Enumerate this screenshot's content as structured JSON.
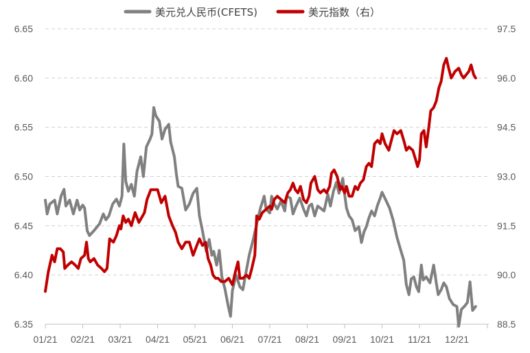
{
  "chart_data": {
    "type": "line",
    "title": "",
    "legend_position": "top",
    "grid": "horizontal-dashed",
    "x_labels": [
      "01/21",
      "02/21",
      "03/21",
      "04/21",
      "05/21",
      "06/21",
      "07/21",
      "08/21",
      "09/21",
      "10/21",
      "11/21",
      "12/21"
    ],
    "x_unit": "month index (0 = 2021-01-01)",
    "xlim": [
      0,
      11.6
    ],
    "y_left": {
      "ticks": [
        "6.65",
        "6.60",
        "6.55",
        "6.50",
        "6.45",
        "6.40",
        "6.35"
      ],
      "lim": [
        6.35,
        6.65
      ]
    },
    "y_right": {
      "ticks": [
        "97.5",
        "96.0",
        "94.5",
        "93.0",
        "91.5",
        "90.0",
        "88.5"
      ],
      "lim": [
        88.5,
        97.5
      ]
    },
    "series": [
      {
        "name": "美元兑人民币(CFETS)",
        "axis": "left",
        "color": "#808080",
        "points": [
          [
            0.0,
            6.476
          ],
          [
            0.05,
            6.462
          ],
          [
            0.12,
            6.472
          ],
          [
            0.25,
            6.476
          ],
          [
            0.32,
            6.462
          ],
          [
            0.42,
            6.48
          ],
          [
            0.5,
            6.487
          ],
          [
            0.55,
            6.47
          ],
          [
            0.65,
            6.476
          ],
          [
            0.75,
            6.462
          ],
          [
            0.85,
            6.476
          ],
          [
            0.92,
            6.466
          ],
          [
            1.0,
            6.471
          ],
          [
            1.05,
            6.468
          ],
          [
            1.12,
            6.445
          ],
          [
            1.18,
            6.44
          ],
          [
            1.3,
            6.445
          ],
          [
            1.45,
            6.452
          ],
          [
            1.55,
            6.462
          ],
          [
            1.62,
            6.456
          ],
          [
            1.7,
            6.46
          ],
          [
            1.8,
            6.472
          ],
          [
            1.9,
            6.477
          ],
          [
            1.98,
            6.47
          ],
          [
            2.05,
            6.48
          ],
          [
            2.1,
            6.533
          ],
          [
            2.15,
            6.495
          ],
          [
            2.22,
            6.485
          ],
          [
            2.3,
            6.492
          ],
          [
            2.38,
            6.48
          ],
          [
            2.45,
            6.505
          ],
          [
            2.55,
            6.52
          ],
          [
            2.62,
            6.5
          ],
          [
            2.7,
            6.53
          ],
          [
            2.8,
            6.538
          ],
          [
            2.85,
            6.543
          ],
          [
            2.9,
            6.57
          ],
          [
            2.95,
            6.562
          ],
          [
            3.05,
            6.556
          ],
          [
            3.12,
            6.538
          ],
          [
            3.2,
            6.548
          ],
          [
            3.3,
            6.553
          ],
          [
            3.35,
            6.535
          ],
          [
            3.45,
            6.52
          ],
          [
            3.5,
            6.503
          ],
          [
            3.55,
            6.49
          ],
          [
            3.65,
            6.488
          ],
          [
            3.75,
            6.466
          ],
          [
            3.85,
            6.472
          ],
          [
            3.95,
            6.483
          ],
          [
            4.05,
            6.488
          ],
          [
            4.12,
            6.46
          ],
          [
            4.2,
            6.445
          ],
          [
            4.3,
            6.424
          ],
          [
            4.38,
            6.436
          ],
          [
            4.45,
            6.42
          ],
          [
            4.5,
            6.424
          ],
          [
            4.58,
            6.41
          ],
          [
            4.65,
            6.425
          ],
          [
            4.72,
            6.398
          ],
          [
            4.8,
            6.386
          ],
          [
            4.88,
            6.37
          ],
          [
            4.95,
            6.358
          ],
          [
            5.0,
            6.384
          ],
          [
            5.1,
            6.4
          ],
          [
            5.2,
            6.388
          ],
          [
            5.28,
            6.385
          ],
          [
            5.35,
            6.4
          ],
          [
            5.45,
            6.42
          ],
          [
            5.55,
            6.435
          ],
          [
            5.65,
            6.452
          ],
          [
            5.75,
            6.468
          ],
          [
            5.85,
            6.48
          ],
          [
            5.9,
            6.467
          ],
          [
            6.0,
            6.463
          ],
          [
            6.05,
            6.48
          ],
          [
            6.12,
            6.472
          ],
          [
            6.2,
            6.467
          ],
          [
            6.3,
            6.475
          ],
          [
            6.4,
            6.465
          ],
          [
            6.45,
            6.48
          ],
          [
            6.55,
            6.478
          ],
          [
            6.62,
            6.462
          ],
          [
            6.7,
            6.47
          ],
          [
            6.8,
            6.478
          ],
          [
            6.9,
            6.467
          ],
          [
            6.98,
            6.46
          ],
          [
            7.05,
            6.47
          ],
          [
            7.12,
            6.472
          ],
          [
            7.2,
            6.46
          ],
          [
            7.28,
            6.47
          ],
          [
            7.35,
            6.468
          ],
          [
            7.45,
            6.465
          ],
          [
            7.55,
            6.482
          ],
          [
            7.62,
            6.47
          ],
          [
            7.7,
            6.485
          ],
          [
            7.78,
            6.494
          ],
          [
            7.85,
            6.483
          ],
          [
            7.95,
            6.498
          ],
          [
            8.0,
            6.482
          ],
          [
            8.05,
            6.468
          ],
          [
            8.12,
            6.46
          ],
          [
            8.2,
            6.456
          ],
          [
            8.28,
            6.445
          ],
          [
            8.38,
            6.449
          ],
          [
            8.45,
            6.433
          ],
          [
            8.52,
            6.444
          ],
          [
            8.58,
            6.449
          ],
          [
            8.65,
            6.458
          ],
          [
            8.72,
            6.465
          ],
          [
            8.8,
            6.46
          ],
          [
            8.88,
            6.471
          ],
          [
            8.95,
            6.478
          ],
          [
            9.0,
            6.484
          ],
          [
            9.1,
            6.476
          ],
          [
            9.2,
            6.468
          ],
          [
            9.3,
            6.455
          ],
          [
            9.4,
            6.438
          ],
          [
            9.5,
            6.425
          ],
          [
            9.58,
            6.415
          ],
          [
            9.65,
            6.39
          ],
          [
            9.72,
            6.38
          ],
          [
            9.78,
            6.396
          ],
          [
            9.85,
            6.398
          ],
          [
            9.92,
            6.388
          ],
          [
            9.98,
            6.383
          ],
          [
            10.05,
            6.41
          ],
          [
            10.1,
            6.395
          ],
          [
            10.18,
            6.398
          ],
          [
            10.28,
            6.392
          ],
          [
            10.38,
            6.41
          ],
          [
            10.45,
            6.392
          ],
          [
            10.5,
            6.38
          ],
          [
            10.58,
            6.385
          ],
          [
            10.65,
            6.392
          ],
          [
            10.72,
            6.388
          ],
          [
            10.8,
            6.376
          ],
          [
            10.9,
            6.37
          ],
          [
            11.0,
            6.368
          ],
          [
            11.05,
            6.348
          ],
          [
            11.12,
            6.365
          ],
          [
            11.2,
            6.368
          ],
          [
            11.28,
            6.372
          ],
          [
            11.35,
            6.393
          ],
          [
            11.42,
            6.364
          ],
          [
            11.5,
            6.368
          ]
        ]
      },
      {
        "name": "美元指数（右）",
        "axis": "right",
        "color": "#c00000",
        "points": [
          [
            0.0,
            89.5
          ],
          [
            0.08,
            90.1
          ],
          [
            0.18,
            90.6
          ],
          [
            0.25,
            90.4
          ],
          [
            0.32,
            90.8
          ],
          [
            0.4,
            90.8
          ],
          [
            0.48,
            90.7
          ],
          [
            0.52,
            90.2
          ],
          [
            0.6,
            90.3
          ],
          [
            0.7,
            90.4
          ],
          [
            0.8,
            90.3
          ],
          [
            0.88,
            90.2
          ],
          [
            0.95,
            90.5
          ],
          [
            1.05,
            90.6
          ],
          [
            1.1,
            91.0
          ],
          [
            1.15,
            90.5
          ],
          [
            1.2,
            90.4
          ],
          [
            1.3,
            90.5
          ],
          [
            1.4,
            90.3
          ],
          [
            1.5,
            90.2
          ],
          [
            1.58,
            90.1
          ],
          [
            1.65,
            90.2
          ],
          [
            1.72,
            91.1
          ],
          [
            1.82,
            91.0
          ],
          [
            1.9,
            91.2
          ],
          [
            1.98,
            91.5
          ],
          [
            2.02,
            91.4
          ],
          [
            2.08,
            91.8
          ],
          [
            2.15,
            91.6
          ],
          [
            2.22,
            91.7
          ],
          [
            2.3,
            91.5
          ],
          [
            2.4,
            91.9
          ],
          [
            2.5,
            91.6
          ],
          [
            2.6,
            91.8
          ],
          [
            2.65,
            91.9
          ],
          [
            2.72,
            92.3
          ],
          [
            2.82,
            92.6
          ],
          [
            2.92,
            92.6
          ],
          [
            3.0,
            92.6
          ],
          [
            3.1,
            92.2
          ],
          [
            3.2,
            92.4
          ],
          [
            3.3,
            91.8
          ],
          [
            3.4,
            91.5
          ],
          [
            3.48,
            91.3
          ],
          [
            3.55,
            91.0
          ],
          [
            3.65,
            90.8
          ],
          [
            3.75,
            91.0
          ],
          [
            3.85,
            91.0
          ],
          [
            3.95,
            90.6
          ],
          [
            4.05,
            90.9
          ],
          [
            4.12,
            91.1
          ],
          [
            4.2,
            90.9
          ],
          [
            4.28,
            91.0
          ],
          [
            4.35,
            90.5
          ],
          [
            4.42,
            90.3
          ],
          [
            4.48,
            90.0
          ],
          [
            4.55,
            89.9
          ],
          [
            4.62,
            89.9
          ],
          [
            4.7,
            89.8
          ],
          [
            4.8,
            89.8
          ],
          [
            4.9,
            89.9
          ],
          [
            5.0,
            89.7
          ],
          [
            5.08,
            90.1
          ],
          [
            5.15,
            90.4
          ],
          [
            5.2,
            89.9
          ],
          [
            5.28,
            89.9
          ],
          [
            5.38,
            90.0
          ],
          [
            5.45,
            89.9
          ],
          [
            5.52,
            90.2
          ],
          [
            5.6,
            90.6
          ],
          [
            5.65,
            91.8
          ],
          [
            5.72,
            91.7
          ],
          [
            5.8,
            91.9
          ],
          [
            5.9,
            92.0
          ],
          [
            6.0,
            92.1
          ],
          [
            6.05,
            92.0
          ],
          [
            6.12,
            92.3
          ],
          [
            6.2,
            92.4
          ],
          [
            6.3,
            92.3
          ],
          [
            6.4,
            92.2
          ],
          [
            6.48,
            92.5
          ],
          [
            6.55,
            92.6
          ],
          [
            6.62,
            92.8
          ],
          [
            6.68,
            92.6
          ],
          [
            6.75,
            92.5
          ],
          [
            6.82,
            92.7
          ],
          [
            6.9,
            92.3
          ],
          [
            6.98,
            92.2
          ],
          [
            7.05,
            92.4
          ],
          [
            7.1,
            92.8
          ],
          [
            7.2,
            93.0
          ],
          [
            7.28,
            92.6
          ],
          [
            7.35,
            92.5
          ],
          [
            7.45,
            92.6
          ],
          [
            7.52,
            92.5
          ],
          [
            7.6,
            92.7
          ],
          [
            7.65,
            93.1
          ],
          [
            7.72,
            93.2
          ],
          [
            7.8,
            93.0
          ],
          [
            7.88,
            92.6
          ],
          [
            7.92,
            92.7
          ],
          [
            8.0,
            92.5
          ],
          [
            8.05,
            92.7
          ],
          [
            8.12,
            92.4
          ],
          [
            8.2,
            92.4
          ],
          [
            8.28,
            92.7
          ],
          [
            8.35,
            92.6
          ],
          [
            8.42,
            92.8
          ],
          [
            8.5,
            92.9
          ],
          [
            8.58,
            93.3
          ],
          [
            8.65,
            93.4
          ],
          [
            8.72,
            93.3
          ],
          [
            8.8,
            94.0
          ],
          [
            8.88,
            94.1
          ],
          [
            8.95,
            94.0
          ],
          [
            9.0,
            94.3
          ],
          [
            9.08,
            94.0
          ],
          [
            9.18,
            93.8
          ],
          [
            9.25,
            94.1
          ],
          [
            9.32,
            94.4
          ],
          [
            9.4,
            94.3
          ],
          [
            9.5,
            94.4
          ],
          [
            9.58,
            94.1
          ],
          [
            9.65,
            93.8
          ],
          [
            9.72,
            93.9
          ],
          [
            9.82,
            93.8
          ],
          [
            9.9,
            93.5
          ],
          [
            9.95,
            93.3
          ],
          [
            10.0,
            93.5
          ],
          [
            10.05,
            94.3
          ],
          [
            10.12,
            94.4
          ],
          [
            10.18,
            93.9
          ],
          [
            10.25,
            94.5
          ],
          [
            10.3,
            95.0
          ],
          [
            10.38,
            95.1
          ],
          [
            10.45,
            95.3
          ],
          [
            10.52,
            95.7
          ],
          [
            10.58,
            95.9
          ],
          [
            10.65,
            96.4
          ],
          [
            10.72,
            96.6
          ],
          [
            10.78,
            96.3
          ],
          [
            10.85,
            96.0
          ],
          [
            10.95,
            96.2
          ],
          [
            11.05,
            96.3
          ],
          [
            11.12,
            96.1
          ],
          [
            11.18,
            96.0
          ],
          [
            11.25,
            96.1
          ],
          [
            11.32,
            96.2
          ],
          [
            11.38,
            96.4
          ],
          [
            11.45,
            96.1
          ],
          [
            11.5,
            96.0
          ]
        ]
      }
    ]
  }
}
